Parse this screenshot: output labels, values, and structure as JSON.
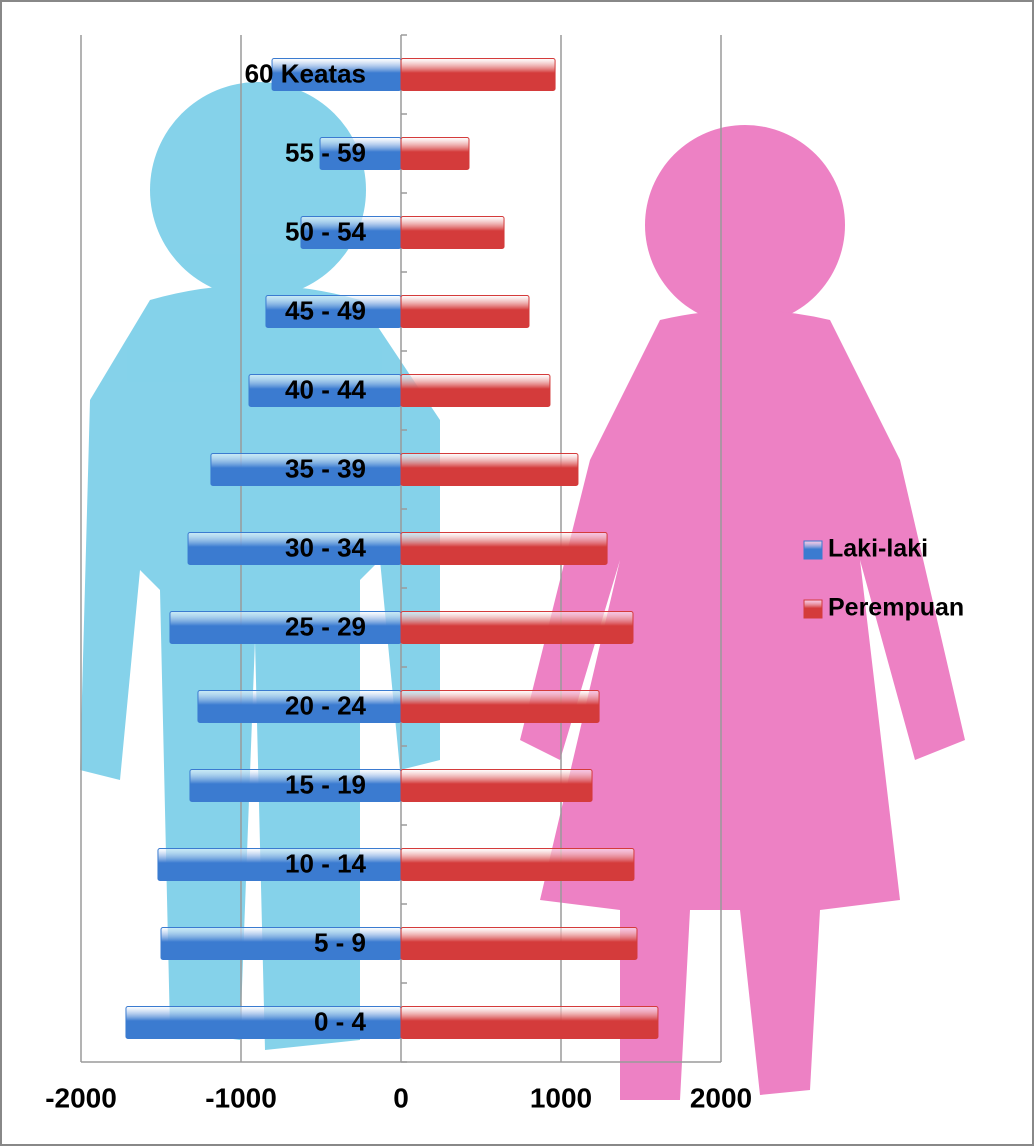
{
  "chart_data": {
    "type": "bar",
    "orientation": "horizontal",
    "categories": [
      "0 - 4",
      "5 - 9",
      "10 - 14",
      "15 - 19",
      "20 - 24",
      "25 - 29",
      "30 - 34",
      "35 - 39",
      "40 - 44",
      "45 - 49",
      "50 - 54",
      "55 - 59",
      "60 Keatas"
    ],
    "series": [
      {
        "name": "Laki-laki",
        "color": "#3b7bd0",
        "values": [
          -1719,
          -1500,
          -1519,
          -1319,
          -1269,
          -1444,
          -1331,
          -1188,
          -950,
          -844,
          -625,
          -506,
          -806
        ]
      },
      {
        "name": "Perempuan",
        "color": "#d43b3b",
        "values": [
          1606,
          1475,
          1456,
          1194,
          1238,
          1450,
          1288,
          1106,
          931,
          800,
          644,
          425,
          963
        ]
      }
    ],
    "xlim": [
      -2000,
      2000
    ],
    "xticks": [
      -2000,
      -1000,
      0,
      1000,
      2000
    ],
    "grid": true,
    "legend": "right"
  }
}
